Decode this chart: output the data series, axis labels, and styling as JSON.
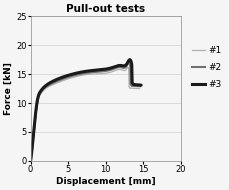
{
  "title": "Pull-out tests",
  "xlabel": "Displacement [mm]",
  "ylabel": "Force [kN]",
  "xlim": [
    0,
    20
  ],
  "ylim": [
    0,
    25
  ],
  "xticks": [
    0,
    5,
    10,
    15,
    20
  ],
  "yticks": [
    0,
    5,
    10,
    15,
    20,
    25
  ],
  "curves": [
    {
      "label": "#1",
      "color": "#b0b0b0",
      "linewidth": 0.9,
      "key_points": [
        [
          0.0,
          0.0
        ],
        [
          0.3,
          3.0
        ],
        [
          0.6,
          7.0
        ],
        [
          0.9,
          10.0
        ],
        [
          1.3,
          11.5
        ],
        [
          2.0,
          12.5
        ],
        [
          3.0,
          13.2
        ],
        [
          5.0,
          14.2
        ],
        [
          8.0,
          15.0
        ],
        [
          11.0,
          15.5
        ],
        [
          12.0,
          15.8
        ],
        [
          12.8,
          16.0
        ],
        [
          13.0,
          16.1
        ],
        [
          13.05,
          15.8
        ],
        [
          13.1,
          12.8
        ],
        [
          13.2,
          12.6
        ],
        [
          14.5,
          12.5
        ]
      ]
    },
    {
      "label": "#2",
      "color": "#707070",
      "linewidth": 1.5,
      "key_points": [
        [
          0.0,
          0.0
        ],
        [
          0.3,
          3.2
        ],
        [
          0.6,
          7.2
        ],
        [
          0.9,
          10.2
        ],
        [
          1.3,
          11.8
        ],
        [
          2.0,
          12.8
        ],
        [
          3.0,
          13.5
        ],
        [
          5.0,
          14.5
        ],
        [
          8.0,
          15.3
        ],
        [
          11.0,
          15.9
        ],
        [
          12.0,
          16.2
        ],
        [
          12.8,
          16.5
        ],
        [
          13.2,
          16.7
        ],
        [
          13.25,
          16.4
        ],
        [
          13.3,
          13.2
        ],
        [
          13.5,
          13.0
        ],
        [
          14.6,
          12.9
        ]
      ]
    },
    {
      "label": "#3",
      "color": "#1a1a1a",
      "linewidth": 2.2,
      "key_points": [
        [
          0.0,
          0.0
        ],
        [
          0.3,
          3.5
        ],
        [
          0.6,
          7.5
        ],
        [
          0.9,
          10.5
        ],
        [
          1.3,
          12.0
        ],
        [
          2.0,
          13.0
        ],
        [
          3.0,
          13.8
        ],
        [
          5.0,
          14.8
        ],
        [
          8.0,
          15.6
        ],
        [
          11.0,
          16.2
        ],
        [
          12.0,
          16.5
        ],
        [
          12.8,
          16.8
        ],
        [
          13.4,
          17.0
        ],
        [
          13.45,
          16.7
        ],
        [
          13.5,
          13.5
        ],
        [
          13.7,
          13.2
        ],
        [
          14.7,
          13.1
        ]
      ]
    }
  ],
  "background_color": "#f5f5f5",
  "grid_color": "#d0d0d0",
  "title_fontsize": 7.5,
  "label_fontsize": 6.5,
  "tick_fontsize": 6.0,
  "legend_fontsize": 6.5
}
